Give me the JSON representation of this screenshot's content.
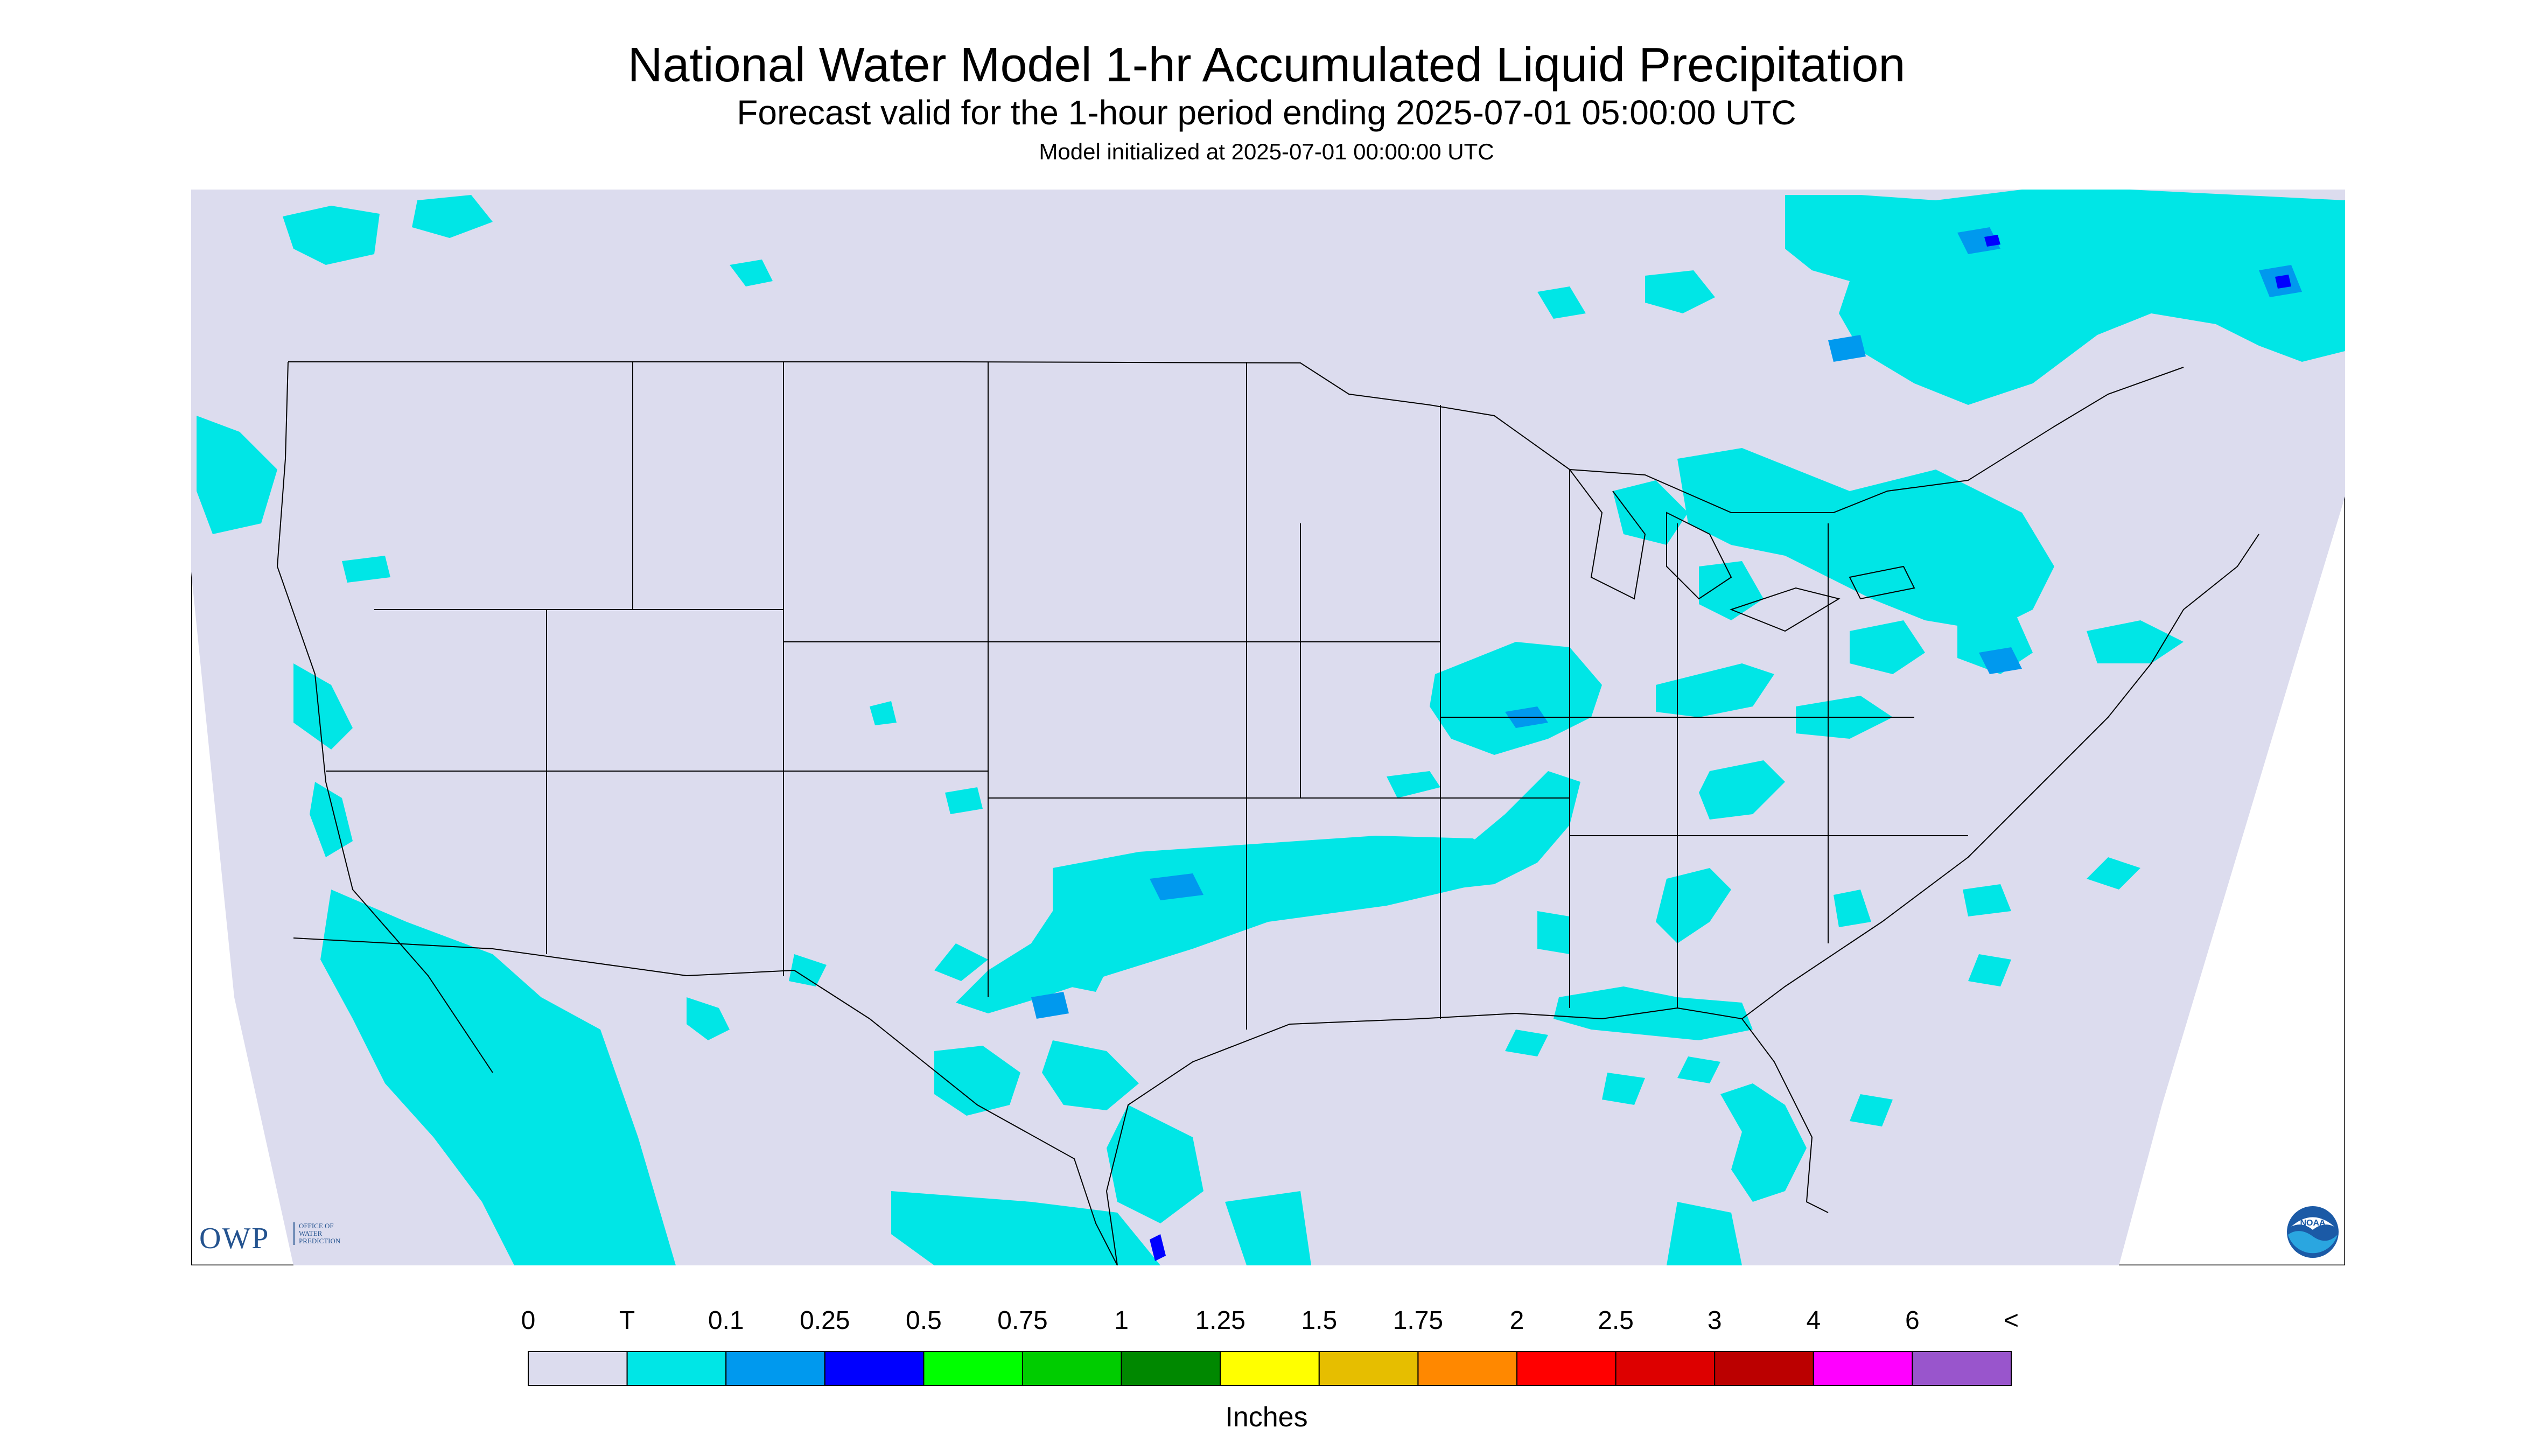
{
  "header": {
    "title": "National Water Model 1-hr Accumulated Liquid Precipitation",
    "subtitle": "Forecast valid for the 1-hour period ending 2025-07-01 05:00:00 UTC",
    "init_line": "Model initialized at 2025-07-01 00:00:00 UTC"
  },
  "map": {
    "background_color": "#dcdcee",
    "precip_color_trace": "#00e6e6",
    "precip_color_high": "#0000ff",
    "border_color": "#000000"
  },
  "legend": {
    "units_label": "Inches",
    "tick_labels": [
      "0",
      "T",
      "0.1",
      "0.25",
      "0.5",
      "0.75",
      "1",
      "1.25",
      "1.5",
      "1.75",
      "2",
      "2.5",
      "3",
      "4",
      "6",
      "<"
    ],
    "colors": [
      "#dcdcee",
      "#00e6e6",
      "#0099ee",
      "#0000ff",
      "#00ff00",
      "#00cc00",
      "#008800",
      "#ffff00",
      "#e6be00",
      "#ff8800",
      "#ff0000",
      "#dd0000",
      "#bb0000",
      "#ff00ff",
      "#9955cc"
    ]
  },
  "logos": {
    "owp_text": "OWP",
    "owp_subtext": [
      "OFFICE OF",
      "WATER",
      "PREDICTION"
    ],
    "noaa_text": "NOAA"
  }
}
